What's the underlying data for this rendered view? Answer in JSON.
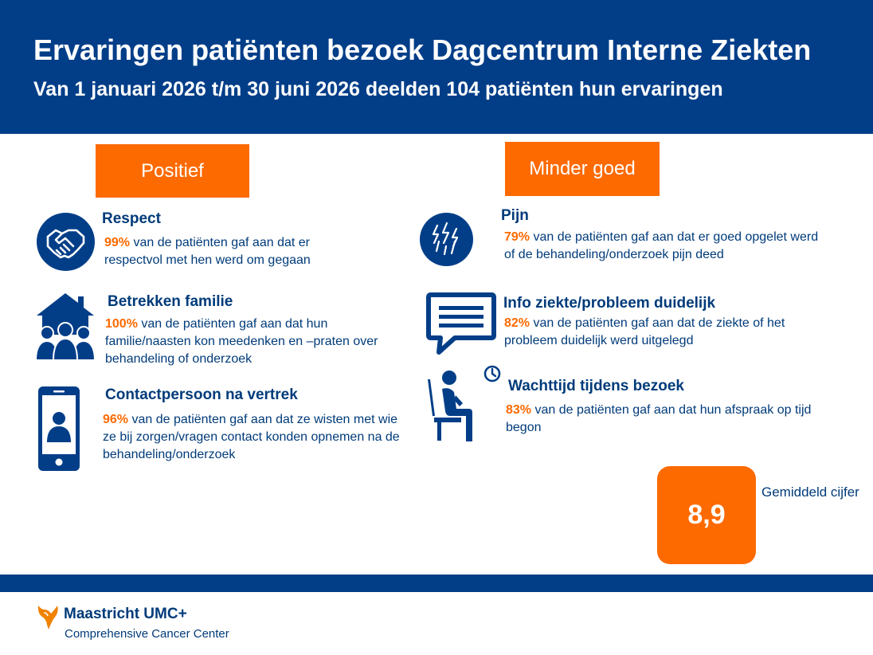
{
  "header": {
    "title": "Ervaringen patiënten bezoek Dagcentrum Interne Ziekten",
    "subtitle": "Van 1 januari 2026 t/m 30 juni 2026 deelden 104 patiënten hun ervaringen"
  },
  "columns": {
    "positive_label": "Positief",
    "negative_label": "Minder goed"
  },
  "positive": [
    {
      "title": "Respect",
      "pct": "99%",
      "text": " van de patiënten gaf aan dat er respectvol met hen werd om gegaan",
      "icon": "handshake-icon"
    },
    {
      "title": "Betrekken familie",
      "pct": "100%",
      "text": " van de patiënten gaf aan dat hun familie/naasten kon meedenken en –praten over behandeling of onderzoek",
      "icon": "family-house-icon"
    },
    {
      "title": "Contactpersoon na vertrek",
      "pct": "96%",
      "text": " van de patiënten gaf aan dat ze wisten met wie ze bij zorgen/vragen contact konden opnemen na de behandeling/onderzoek",
      "icon": "phone-contact-icon"
    }
  ],
  "negative": [
    {
      "title": "Pijn",
      "pct": "79%",
      "text": " van de patiënten gaf aan dat er goed opgelet werd of de behandeling/onderzoek pijn deed",
      "icon": "pain-icon"
    },
    {
      "title": "Info ziekte/probleem duidelijk",
      "pct": "82%",
      "text": " van de patiënten gaf aan dat de ziekte of het probleem duidelijk werd uitgelegd",
      "icon": "speech-bubble-icon"
    },
    {
      "title": "Wachttijd tijdens bezoek",
      "pct": "83%",
      "text": " van de patiënten gaf aan dat hun afspraak op tijd begon",
      "icon": "waiting-person-icon"
    }
  ],
  "score": {
    "value": "8,9",
    "label": "Gemiddeld cijfer"
  },
  "footer": {
    "logo_name": "Maastricht UMC+",
    "logo_sub": "Comprehensive Cancer Center"
  },
  "colors": {
    "brand_blue": "#023e88",
    "accent_orange": "#fd6a00"
  }
}
